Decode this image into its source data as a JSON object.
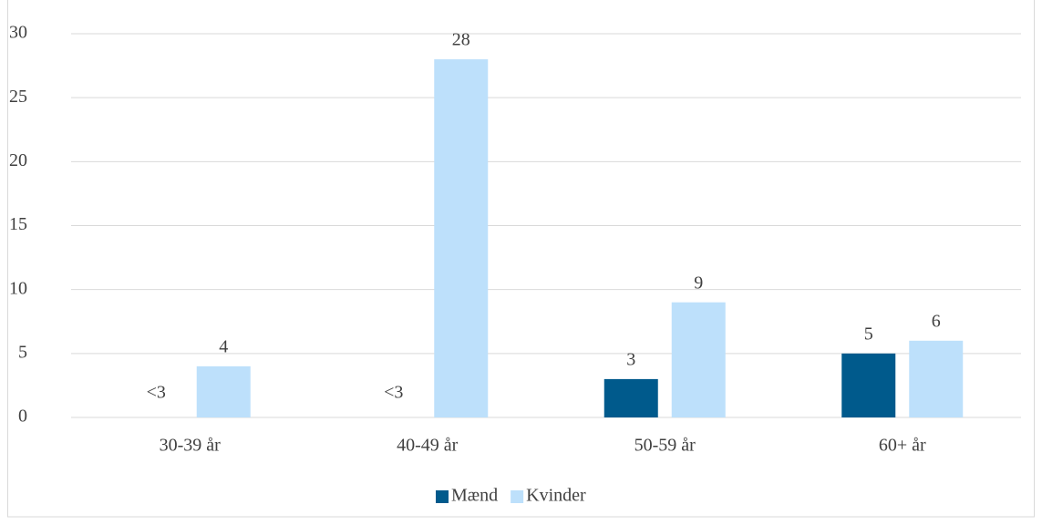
{
  "chart_data": {
    "type": "bar",
    "categories": [
      "30-39 år",
      "40-49 år",
      "50-59 år",
      "60+ år"
    ],
    "series": [
      {
        "name": "Mænd",
        "color": "#005a8c",
        "values": [
          null,
          null,
          3,
          5
        ],
        "value_labels": [
          "<3",
          "<3",
          "3",
          "5"
        ]
      },
      {
        "name": "Kvinder",
        "color": "#bde0fb",
        "values": [
          4,
          28,
          9,
          6
        ]
      }
    ],
    "ylim": [
      0,
      30
    ],
    "yticks": [
      0,
      5,
      10,
      15,
      20,
      25,
      30
    ],
    "grid": true,
    "legend": "bottom"
  }
}
